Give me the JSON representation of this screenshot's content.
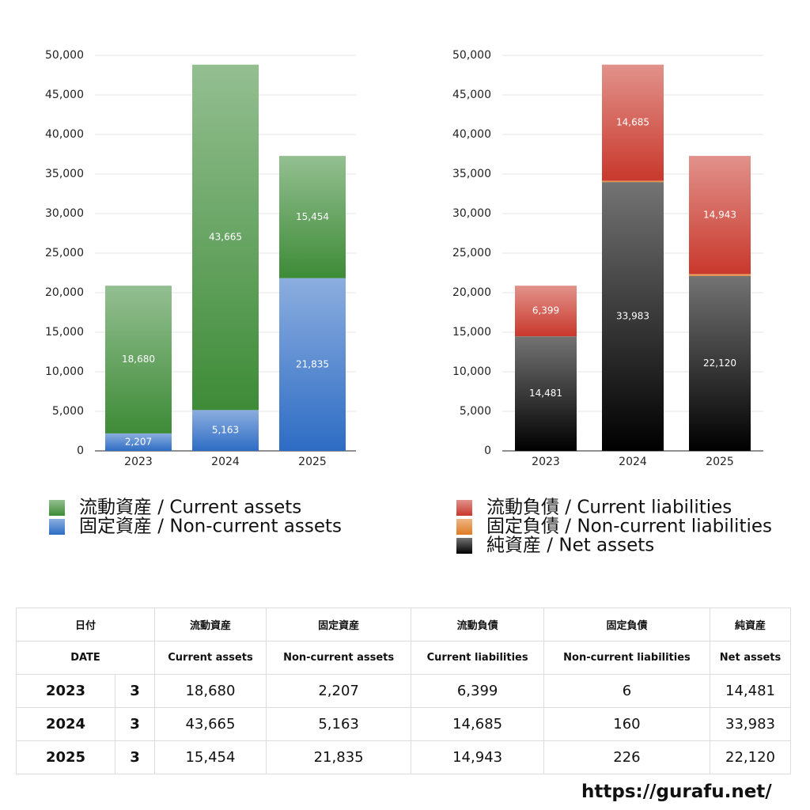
{
  "chart_data": [
    {
      "type": "stacked_bar",
      "categories": [
        "2023",
        "2024",
        "2025"
      ],
      "series": [
        {
          "name": "流動資産 / Current assets",
          "color": "#3d8b37",
          "values": [
            18680,
            43665,
            15454
          ],
          "value_labels": [
            "18,680",
            "43,665",
            "15,454"
          ]
        },
        {
          "name": "固定資産 / Non-current assets",
          "color": "#2d6cc4",
          "values": [
            2207,
            5163,
            21835
          ],
          "value_labels": [
            "2,207",
            "5,163",
            "21,835"
          ]
        }
      ],
      "ylim": [
        0,
        50000
      ],
      "yticks": [
        0,
        {
          "value": 5000,
          "label": "5,000"
        },
        {
          "value": 10000,
          "label": "10,000"
        },
        {
          "value": 15000,
          "label": "15,000"
        },
        {
          "value": 20000,
          "label": "20,000"
        },
        {
          "value": 25000,
          "label": "25,000"
        },
        {
          "value": 30000,
          "label": "30,000"
        },
        {
          "value": 35000,
          "label": "35,000"
        },
        {
          "value": 40000,
          "label": "40,000"
        },
        {
          "value": 45000,
          "label": "45,000"
        },
        {
          "value": 50000,
          "label": "50,000"
        }
      ],
      "grid": true
    },
    {
      "type": "stacked_bar",
      "categories": [
        "2023",
        "2024",
        "2025"
      ],
      "series": [
        {
          "name": "流動負債 / Current liabilities",
          "color": "#c9382c",
          "values": [
            6399,
            14685,
            14943
          ],
          "value_labels": [
            "6,399",
            "14,685",
            "14,943"
          ]
        },
        {
          "name": "固定負債 / Non-current liabilities",
          "color": "#e07b22",
          "values": [
            6,
            160,
            226
          ]
        },
        {
          "name": "純資産 / Net assets",
          "color": "#000000",
          "values": [
            14481,
            33983,
            22120
          ],
          "value_labels": [
            "14,481",
            "33,983",
            "22,120"
          ]
        }
      ],
      "ylim": [
        0,
        50000
      ],
      "yticks": [
        0,
        {
          "value": 5000,
          "label": "5,000"
        },
        {
          "value": 10000,
          "label": "10,000"
        },
        {
          "value": 15000,
          "label": "15,000"
        },
        {
          "value": 20000,
          "label": "20,000"
        },
        {
          "value": 25000,
          "label": "25,000"
        },
        {
          "value": 30000,
          "label": "30,000"
        },
        {
          "value": 35000,
          "label": "35,000"
        },
        {
          "value": 40000,
          "label": "40,000"
        },
        {
          "value": 45000,
          "label": "45,000"
        },
        {
          "value": 50000,
          "label": "50,000"
        }
      ],
      "grid": true
    }
  ],
  "table": {
    "header": [
      [
        "日付",
        "流動資産",
        "固定資産",
        "流動負債",
        "固定負債",
        "純資産"
      ],
      [
        "DATE",
        "Current assets",
        "Non-current assets",
        "Current liabilities",
        "Non-current liabilities",
        "Net assets"
      ]
    ],
    "rows": [
      [
        "2023",
        "3",
        "18,680",
        "2,207",
        "6,399",
        "6",
        "14,481"
      ],
      [
        "2024",
        "3",
        "43,665",
        "5,163",
        "14,685",
        "160",
        "33,983"
      ],
      [
        "2025",
        "3",
        "15,454",
        "21,835",
        "14,943",
        "226",
        "22,120"
      ]
    ]
  },
  "footer": "https://gurafu.net/"
}
